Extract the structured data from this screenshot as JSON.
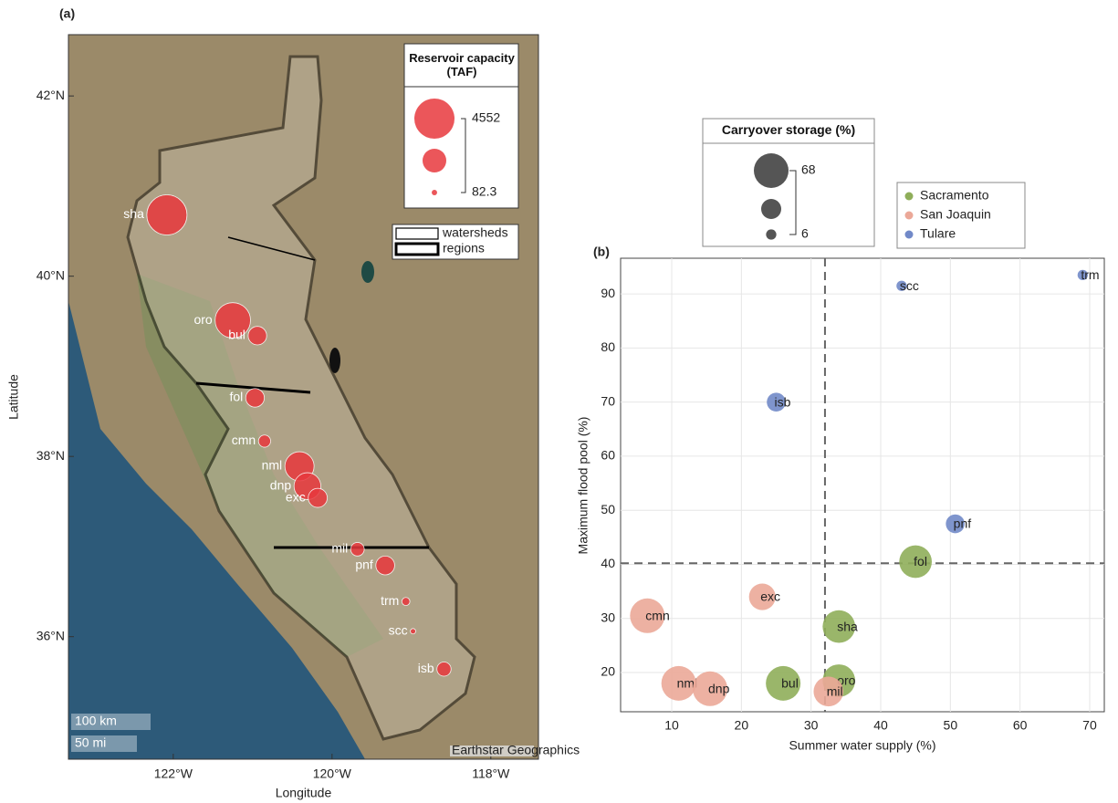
{
  "chart_data": [
    {
      "type": "map",
      "panel": "(a)",
      "xlabel": "Longitude",
      "ylabel": "Latitude",
      "xlim": [
        -123.32,
        -117.4
      ],
      "ylim": [
        34.64,
        42.68
      ],
      "xticks": [
        {
          "value": -122,
          "label": "122°W"
        },
        {
          "value": -120,
          "label": "120°W"
        },
        {
          "value": -118,
          "label": "118°W"
        }
      ],
      "yticks": [
        {
          "value": 36,
          "label": "36°N"
        },
        {
          "value": 38,
          "label": "38°N"
        },
        {
          "value": 40,
          "label": "40°N"
        },
        {
          "value": 42,
          "label": "42°N"
        }
      ],
      "color": "#e8383d",
      "labels": [
        "sha",
        "oro",
        "bul",
        "fol",
        "cmn",
        "nml",
        "dnp",
        "exc",
        "mil",
        "pnf",
        "trm",
        "scc",
        "isb"
      ],
      "x": [
        -122.08,
        -121.25,
        -120.94,
        -120.97,
        -120.85,
        -120.41,
        -120.31,
        -120.18,
        -119.68,
        -119.33,
        -119.07,
        -118.98,
        -118.59
      ],
      "values": [
        40.68,
        39.51,
        39.34,
        38.65,
        38.17,
        37.89,
        37.67,
        37.54,
        36.97,
        36.79,
        36.39,
        36.06,
        35.64
      ],
      "sizes": [
        4552,
        3537,
        970,
        977,
        417,
        2400,
        2030,
        1024,
        520,
        1000,
        185,
        82.3,
        568
      ],
      "size_legend": {
        "title": "Reservoir capacity (TAF)",
        "values": [
          4552,
          82.3
        ]
      },
      "outline_legend": [
        "watersheds",
        "regions"
      ],
      "scale_bar": [
        "100 km",
        "50 mi"
      ],
      "attribution": "Earthstar Geographics"
    },
    {
      "type": "scatter",
      "panel": "(b)",
      "xlabel": "Summer water supply (%)",
      "ylabel": "Maximum flood pool (%)",
      "xlim": [
        2.66,
        72.1
      ],
      "ylim": [
        12.75,
        96.6
      ],
      "xticks": [
        10,
        20,
        30,
        40,
        50,
        60,
        70
      ],
      "yticks": [
        20,
        30,
        40,
        50,
        60,
        70,
        80,
        90
      ],
      "grid": true,
      "reference_lines": {
        "x": 32,
        "y": 40.2
      },
      "series": [
        {
          "name": "Sacramento",
          "color": "#8fae5a",
          "labels": [
            "fol",
            "sha",
            "bul",
            "oro"
          ],
          "x": [
            45,
            34,
            26,
            34
          ],
          "values": [
            40.5,
            28.5,
            18,
            18.5
          ],
          "sizes": [
            60,
            60,
            68,
            60
          ]
        },
        {
          "name": "San Joaquin",
          "color": "#eba898",
          "labels": [
            "cmn",
            "exc",
            "nml",
            "dnp",
            "mil"
          ],
          "x": [
            6.5,
            23,
            11,
            15.5,
            32.5
          ],
          "values": [
            30.5,
            34,
            18,
            17,
            16.5
          ],
          "sizes": [
            68,
            40,
            68,
            68,
            50
          ]
        },
        {
          "name": "Tulare",
          "color": "#7189c8",
          "labels": [
            "trm",
            "scc",
            "isb",
            "pnf"
          ],
          "x": [
            69,
            43,
            25,
            50.7
          ],
          "values": [
            93.5,
            91.5,
            70,
            47.5
          ],
          "sizes": [
            6,
            6,
            20,
            20
          ]
        }
      ],
      "size_legend": {
        "title": "Carryover storage (%)",
        "values": [
          68,
          6
        ]
      }
    }
  ]
}
